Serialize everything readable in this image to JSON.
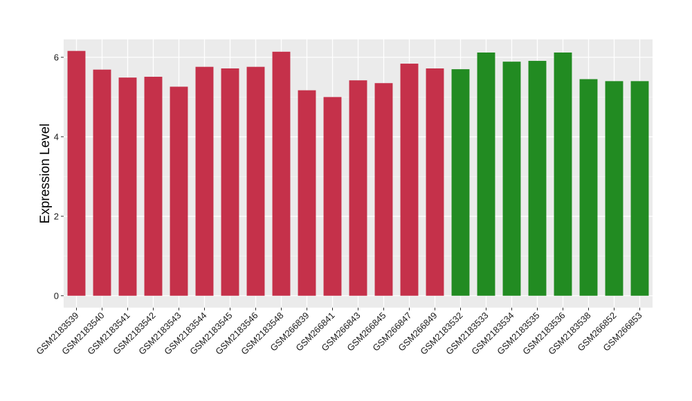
{
  "chart_data": {
    "type": "bar",
    "title": "",
    "xlabel": "",
    "ylabel": "Expression Level",
    "ylim": [
      -0.3,
      6.45
    ],
    "yticks": [
      0,
      2,
      4,
      6
    ],
    "grid": true,
    "legend": "none",
    "colors": {
      "panel_background": "#ebebeb",
      "grid_major": "#ffffff",
      "group_1": "#c5314a",
      "group_2": "#228b22"
    },
    "categories": [
      "GSM2183539",
      "GSM2183540",
      "GSM2183541",
      "GSM2183542",
      "GSM2183543",
      "GSM2183544",
      "GSM2183545",
      "GSM2183546",
      "GSM2183548",
      "GSM266839",
      "GSM266841",
      "GSM266843",
      "GSM266845",
      "GSM266847",
      "GSM266849",
      "GSM2183532",
      "GSM2183533",
      "GSM2183534",
      "GSM2183535",
      "GSM2183536",
      "GSM2183538",
      "GSM266852",
      "GSM266853"
    ],
    "values": [
      6.16,
      5.69,
      5.49,
      5.51,
      5.26,
      5.76,
      5.72,
      5.76,
      6.14,
      5.17,
      5.0,
      5.42,
      5.35,
      5.84,
      5.72,
      5.7,
      6.12,
      5.89,
      5.91,
      6.12,
      5.45,
      5.4,
      5.4
    ],
    "groups": [
      1,
      1,
      1,
      1,
      1,
      1,
      1,
      1,
      1,
      1,
      1,
      1,
      1,
      1,
      1,
      2,
      2,
      2,
      2,
      2,
      2,
      2,
      2
    ]
  }
}
